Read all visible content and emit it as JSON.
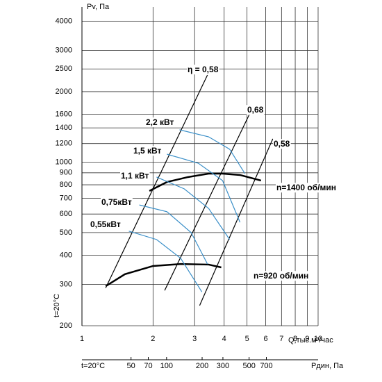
{
  "chart_data": {
    "type": "line",
    "log_x": true,
    "log_y": true,
    "grid": true,
    "y_label": "Pv, Па",
    "x_label": "Q,тыс.м³/час",
    "side_label": "t=20°C",
    "xlim": [
      1,
      10
    ],
    "xticks": [
      1,
      2,
      3,
      4,
      5,
      6,
      7,
      8,
      9,
      10
    ],
    "ylim": [
      200,
      4600
    ],
    "yticks": [
      200,
      300,
      400,
      500,
      600,
      700,
      800,
      900,
      1000,
      1200,
      1400,
      1600,
      2000,
      2500,
      3000,
      4000
    ],
    "dynamic_axis": {
      "label_left": "t=20°C",
      "label_right": "Pдин, Па",
      "lim": [
        19.2,
        1920
      ],
      "ticks": [
        50,
        70,
        100,
        200,
        300,
        500,
        700
      ]
    },
    "series": [
      {
        "name": "n=1400 об/мин",
        "color": "#000000",
        "x": [
          1.93,
          2.29,
          2.81,
          3.44,
          3.94,
          4.67,
          5.73
        ],
        "values": [
          753,
          822,
          863,
          893,
          893,
          881,
          834
        ]
      },
      {
        "name": "n=920 об/мин",
        "color": "#000000",
        "x": [
          1.26,
          1.52,
          2.0,
          2.62,
          3.44,
          3.89
        ],
        "values": [
          295,
          332,
          360,
          367,
          365,
          355
        ]
      },
      {
        "name": "η = 0,58",
        "color": "#000000",
        "x": [
          1.26,
          3.4
        ],
        "values": [
          290,
          2356
        ]
      },
      {
        "name": "0,68",
        "color": "#000000",
        "x": [
          2.24,
          5.11
        ],
        "values": [
          283,
          1596
        ]
      },
      {
        "name": "0,58",
        "color": "#000000",
        "x": [
          3.15,
          6.43
        ],
        "values": [
          244,
          1257
        ]
      },
      {
        "name": "2,2 кВт",
        "color": "#3a8fc8",
        "x": [
          2.59,
          3.44,
          4.22,
          4.9
        ],
        "values": [
          1374,
          1282,
          1135,
          893
        ]
      },
      {
        "name": "1,5 кВт",
        "color": "#3a8fc8",
        "x": [
          2.29,
          3.11,
          3.94,
          4.67
        ],
        "values": [
          1081,
          989,
          834,
          553
        ]
      },
      {
        "name": "1,1 кВт",
        "color": "#3a8fc8",
        "x": [
          2.07,
          2.71,
          3.44,
          4.22
        ],
        "values": [
          863,
          769,
          634,
          467
        ]
      },
      {
        "name": "0,75кВт",
        "color": "#3a8fc8",
        "x": [
          1.75,
          2.29,
          2.9,
          3.4
        ],
        "values": [
          656,
          614,
          500,
          367
        ]
      },
      {
        "name": "0,55кВт",
        "color": "#3a8fc8",
        "x": [
          1.58,
          2.07,
          2.62,
          3.22
        ],
        "values": [
          507,
          467,
          388,
          279
        ]
      }
    ]
  }
}
